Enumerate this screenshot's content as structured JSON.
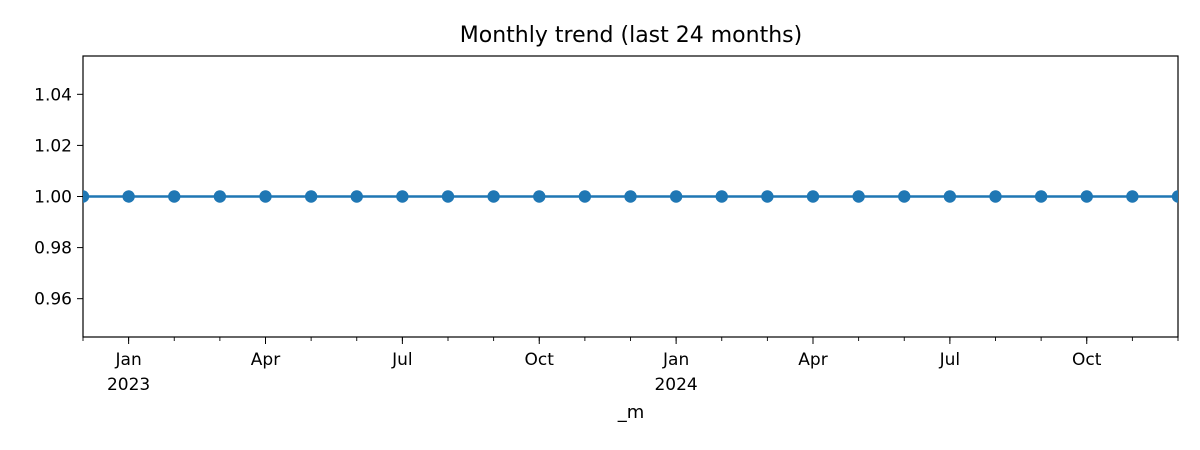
{
  "chart_data": {
    "type": "line",
    "title": "Monthly trend (last 24 months)",
    "xlabel": "_m",
    "ylabel": "",
    "x": [
      "2022-12",
      "2023-01",
      "2023-02",
      "2023-03",
      "2023-04",
      "2023-05",
      "2023-06",
      "2023-07",
      "2023-08",
      "2023-09",
      "2023-10",
      "2023-11",
      "2023-12",
      "2024-01",
      "2024-02",
      "2024-03",
      "2024-04",
      "2024-05",
      "2024-06",
      "2024-07",
      "2024-08",
      "2024-09",
      "2024-10",
      "2024-11",
      "2024-12"
    ],
    "series": [
      {
        "values": [
          1,
          1,
          1,
          1,
          1,
          1,
          1,
          1,
          1,
          1,
          1,
          1,
          1,
          1,
          1,
          1,
          1,
          1,
          1,
          1,
          1,
          1,
          1,
          1,
          1
        ]
      }
    ],
    "ylim": [
      0.945,
      1.055
    ],
    "xlim": [
      "2022-12",
      "2024-12"
    ],
    "yticks": [
      0.96,
      0.98,
      1.0,
      1.02,
      1.04
    ],
    "ytick_labels": [
      "0.96",
      "0.98",
      "1.00",
      "1.02",
      "1.04"
    ],
    "xticks": [
      {
        "month": "2023-01",
        "label": "Jan",
        "sublabel": "2023"
      },
      {
        "month": "2023-04",
        "label": "Apr",
        "sublabel": ""
      },
      {
        "month": "2023-07",
        "label": "Jul",
        "sublabel": ""
      },
      {
        "month": "2023-10",
        "label": "Oct",
        "sublabel": ""
      },
      {
        "month": "2024-01",
        "label": "Jan",
        "sublabel": "2024"
      },
      {
        "month": "2024-04",
        "label": "Apr",
        "sublabel": ""
      },
      {
        "month": "2024-07",
        "label": "Jul",
        "sublabel": ""
      },
      {
        "month": "2024-10",
        "label": "Oct",
        "sublabel": ""
      }
    ],
    "grid": false,
    "legend": "none",
    "colors": {
      "line": "#1f77b4",
      "marker": "#1f77b4",
      "axes": "#000000",
      "text": "#000000"
    }
  }
}
